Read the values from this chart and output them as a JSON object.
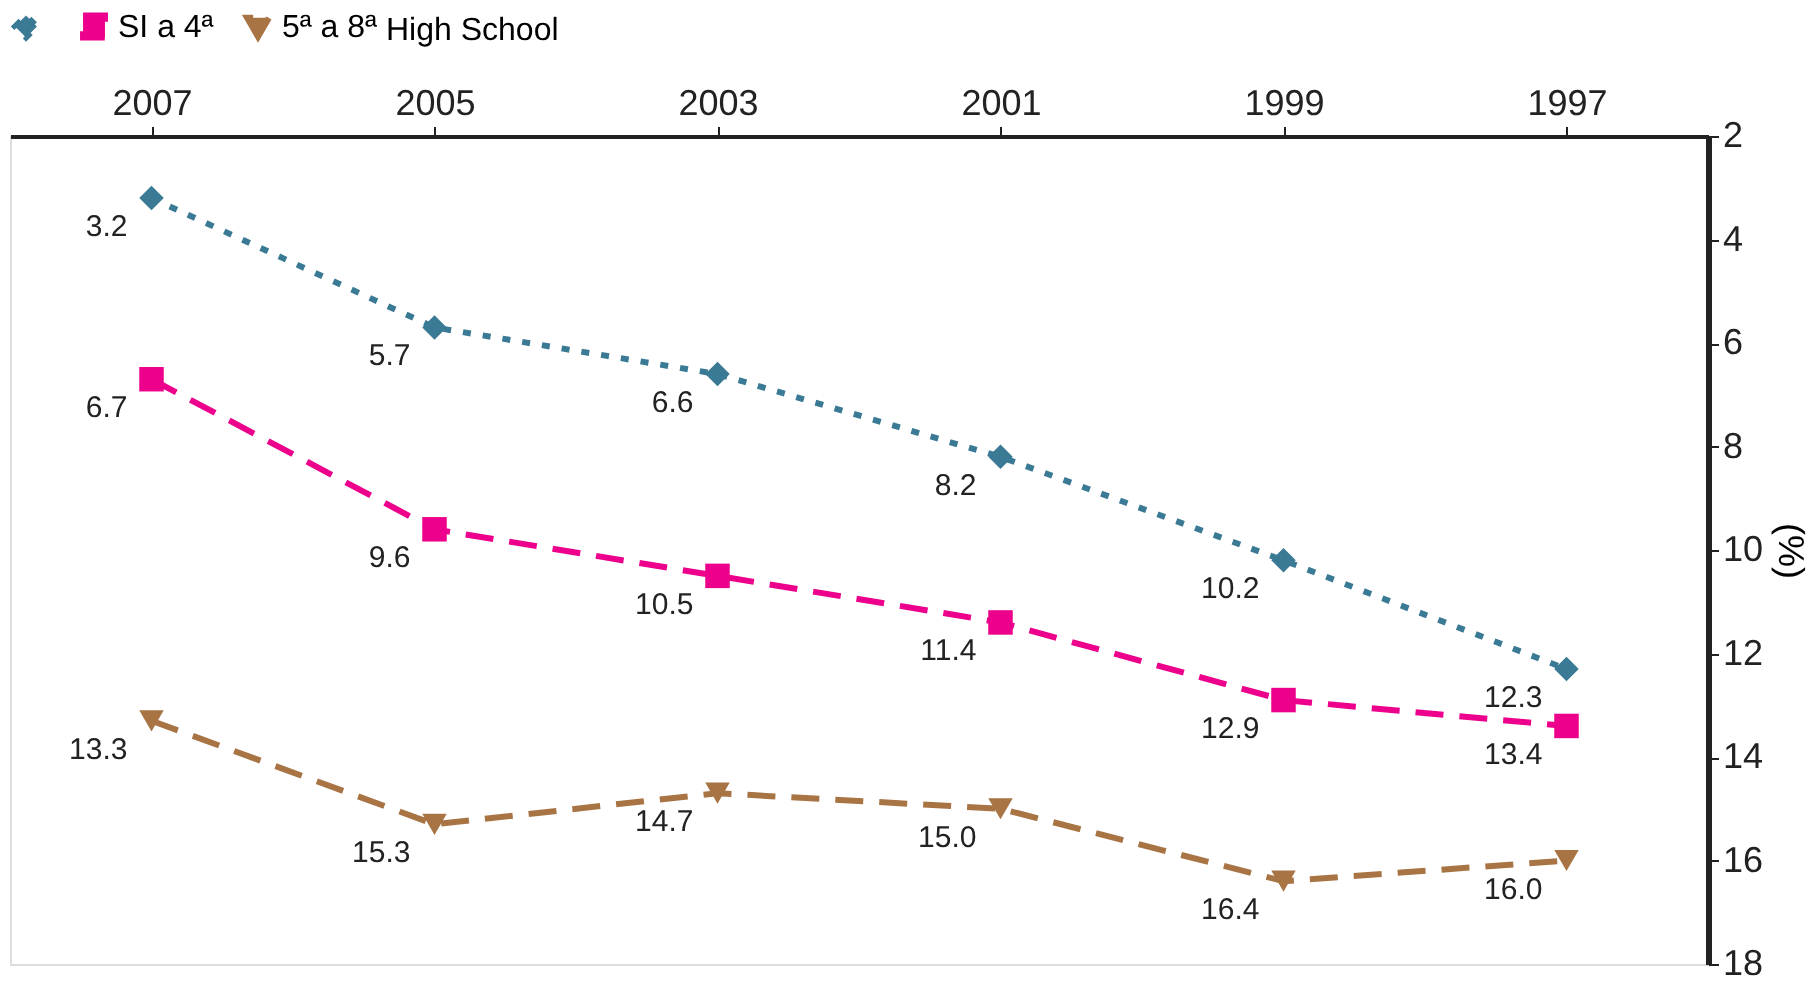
{
  "chart_data": {
    "type": "line",
    "ylabel": "(%)",
    "categories": [
      "2007",
      "2005",
      "2003",
      "2001",
      "1999",
      "1997"
    ],
    "series": [
      {
        "color": "#3a7a94",
        "marker": "diamond",
        "line_style": "dotted",
        "values": [
          3.2,
          5.7,
          6.6,
          8.2,
          10.2,
          12.3
        ],
        "value_labels": [
          "3.2",
          "5.7",
          "6.6",
          "8.2",
          "10.2",
          "12.3"
        ]
      },
      {
        "name": "SI a 4ª",
        "color": "#ec008c",
        "marker": "square",
        "line_style": "dashed",
        "values": [
          6.7,
          9.6,
          10.5,
          11.4,
          12.9,
          13.4
        ],
        "value_labels": [
          "6.7",
          "9.6",
          "10.5",
          "11.4",
          "12.9",
          "13.4"
        ]
      },
      {
        "name": "5ª a 8ª",
        "color": "#a87444",
        "marker": "triangle",
        "line_style": "dashed",
        "values": [
          13.3,
          15.3,
          14.7,
          15.0,
          16.4,
          16.0
        ],
        "value_labels": [
          "13.3",
          "15.3",
          "14.7",
          "15.0",
          "16.4",
          "16.0"
        ]
      }
    ],
    "ylim": [
      18,
      2
    ],
    "yticks": [
      2,
      4,
      6,
      8,
      10,
      12,
      14,
      16,
      18
    ],
    "legend_title": "High School",
    "legend": "top",
    "grid": false
  }
}
